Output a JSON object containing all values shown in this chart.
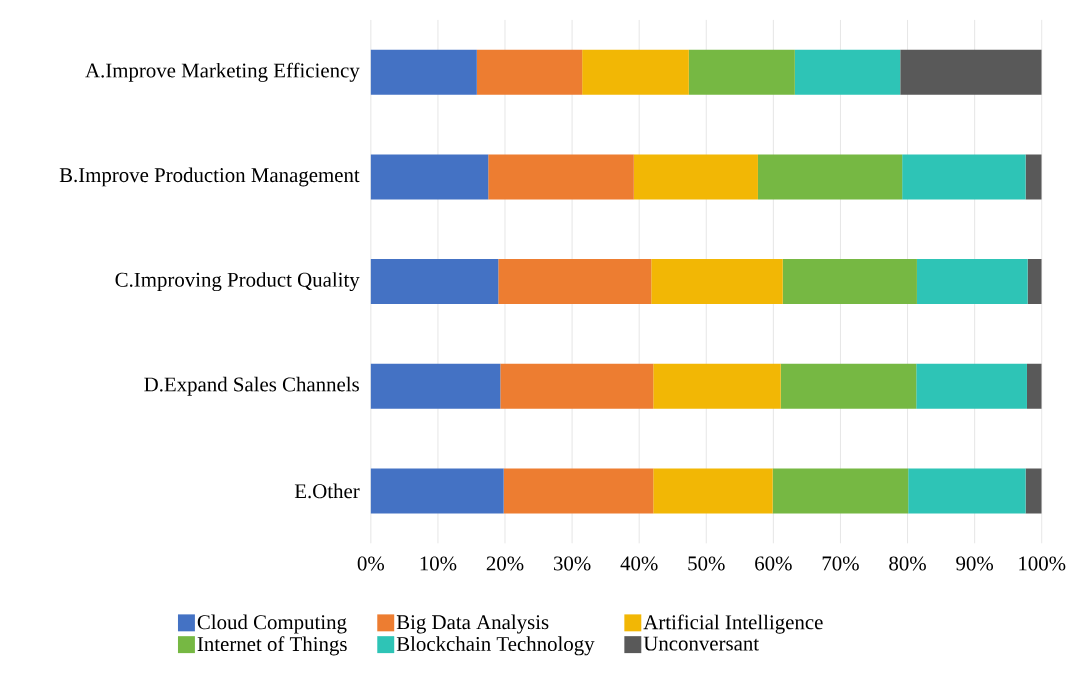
{
  "chart_data": {
    "type": "bar",
    "orientation": "horizontal",
    "stacked": true,
    "categories": [
      "A.Improve Marketing Efficiency",
      "B.Improve Production Management",
      "C.Improving Product Quality",
      "D.Expand Sales Channels",
      "E.Other"
    ],
    "series": [
      {
        "name": "Cloud Computing",
        "color": "#4472c4",
        "values": [
          15.8,
          17.5,
          19.0,
          19.3,
          19.8
        ]
      },
      {
        "name": "Big Data Analysis",
        "color": "#ed7d31",
        "values": [
          15.7,
          21.7,
          22.8,
          22.8,
          22.3
        ]
      },
      {
        "name": "Artificial Intelligence",
        "color": "#f2b705",
        "values": [
          15.9,
          18.5,
          19.6,
          19.0,
          17.8
        ]
      },
      {
        "name": "Internet of Things",
        "color": "#76b843",
        "values": [
          15.8,
          21.5,
          20.0,
          20.2,
          20.2
        ]
      },
      {
        "name": "Blockchain Technology",
        "color": "#2ec4b6",
        "values": [
          15.7,
          18.4,
          16.5,
          16.5,
          17.5
        ]
      },
      {
        "name": "Unconversant",
        "color": "#595959",
        "values": [
          21.1,
          2.4,
          2.1,
          2.2,
          2.4
        ]
      }
    ],
    "xlim": [
      0,
      100
    ],
    "xticks": [
      {
        "value": 0,
        "label": "0%"
      },
      {
        "value": 10,
        "label": "10%"
      },
      {
        "value": 20,
        "label": "20%"
      },
      {
        "value": 30,
        "label": "30%"
      },
      {
        "value": 40,
        "label": "40%"
      },
      {
        "value": 50,
        "label": "50%"
      },
      {
        "value": 60,
        "label": "60%"
      },
      {
        "value": 70,
        "label": "70%"
      },
      {
        "value": 80,
        "label": "80%"
      },
      {
        "value": 90,
        "label": "90%"
      },
      {
        "value": 100,
        "label": "100%"
      }
    ],
    "grid": "x",
    "legend": "bottom"
  }
}
